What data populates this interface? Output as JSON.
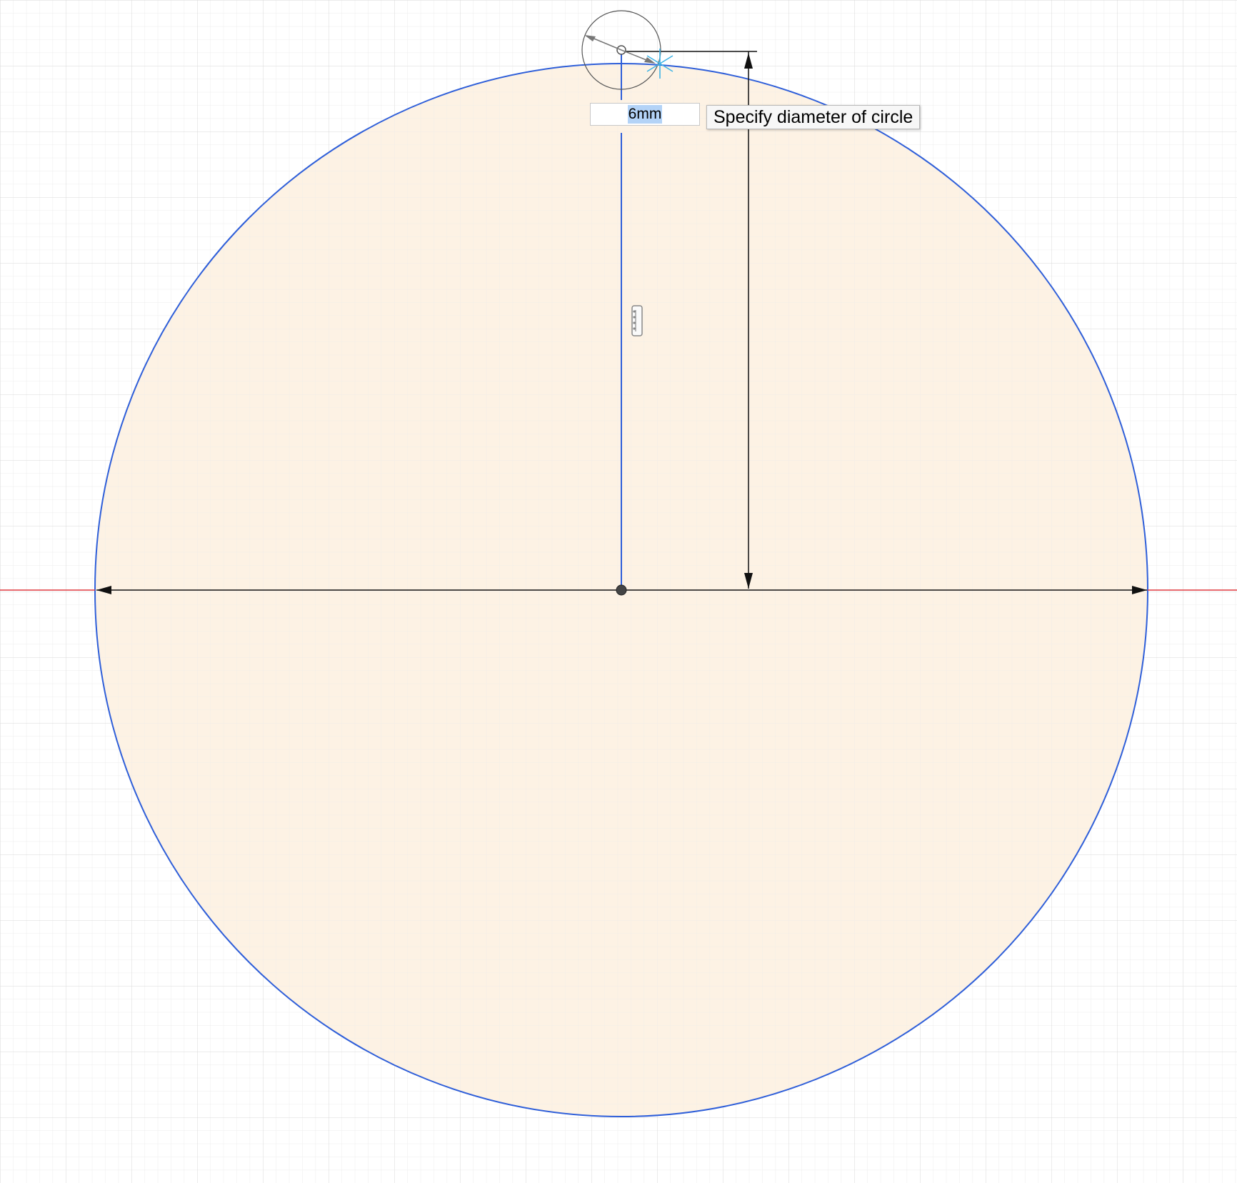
{
  "sketch": {
    "diameter_input": {
      "value": "6mm"
    },
    "tooltip": {
      "text": "Specify diameter of circle"
    },
    "colors": {
      "grid_minor": "#ececec",
      "grid_major": "#d6d6d6",
      "axis_x": "#e0393e",
      "circle_stroke": "#2f5fd9",
      "circle_fill": "#fdf0df",
      "dimension_line": "#111111"
    }
  }
}
